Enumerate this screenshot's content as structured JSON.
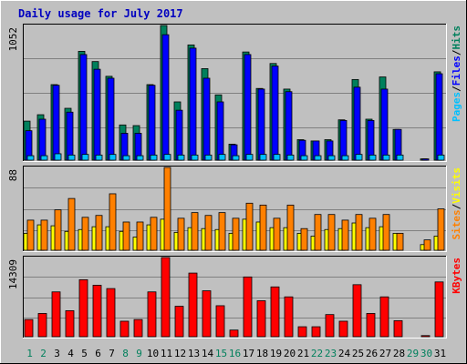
{
  "chart_data": {
    "type": "bar",
    "title": "Daily usage for July 2017",
    "days": [
      "1",
      "2",
      "3",
      "4",
      "5",
      "6",
      "7",
      "8",
      "9",
      "10",
      "11",
      "12",
      "13",
      "14",
      "15",
      "16",
      "17",
      "18",
      "19",
      "20",
      "21",
      "22",
      "23",
      "24",
      "25",
      "26",
      "27",
      "28",
      "29",
      "30",
      "31"
    ],
    "weekend_days": [
      "1",
      "2",
      "8",
      "9",
      "15",
      "16",
      "22",
      "23",
      "29",
      "30"
    ],
    "colors": {
      "hits": "#00805c",
      "files": "#0000ff",
      "pages": "#00c0ff",
      "visits": "#ffff00",
      "sites": "#ff8000",
      "kbytes": "#ff0000",
      "weekday_label": "#000000",
      "weekend_label": "#00805c"
    },
    "panels": [
      {
        "id": "hits-files-pages",
        "max_label": "1052",
        "ylim": [
          0,
          1052
        ],
        "legend": [
          {
            "text": "Pages",
            "color": "#00c0ff"
          },
          {
            "text": "/",
            "color": "#000000"
          },
          {
            "text": "Files",
            "color": "#0000ff"
          },
          {
            "text": "/",
            "color": "#000000"
          },
          {
            "text": "Hits",
            "color": "#00805c"
          }
        ],
        "series": [
          {
            "name": "Hits",
            "values": [
              305,
              355,
              590,
              405,
              850,
              770,
              655,
              275,
              270,
              590,
              1052,
              455,
              900,
              715,
              510,
              125,
              845,
              560,
              755,
              555,
              160,
              150,
              160,
              315,
              630,
              320,
              650,
              240,
              0,
              10,
              690
            ]
          },
          {
            "name": "Files",
            "values": [
              230,
              320,
              585,
              375,
              825,
              710,
              640,
              210,
              210,
              585,
              980,
              390,
              875,
              640,
              455,
              120,
              825,
              555,
              735,
              535,
              155,
              150,
              150,
              310,
              570,
              310,
              555,
              240,
              0,
              10,
              675
            ]
          },
          {
            "name": "Pages",
            "values": [
              35,
              35,
              50,
              40,
              45,
              40,
              45,
              35,
              35,
              40,
              45,
              40,
              40,
              40,
              45,
              35,
              45,
              45,
              45,
              40,
              35,
              35,
              35,
              35,
              45,
              40,
              40,
              40,
              0,
              0,
              40
            ]
          }
        ]
      },
      {
        "id": "visits-sites",
        "max_label": "88",
        "ylim": [
          0,
          88
        ],
        "legend": [
          {
            "text": "Sites",
            "color": "#ff8000"
          },
          {
            "text": "/",
            "color": "#000000"
          },
          {
            "text": "Visits",
            "color": "#ffff00"
          }
        ],
        "series": [
          {
            "name": "Visits",
            "values": [
              18,
              27,
              26,
              20,
              22,
              25,
              25,
              20,
              14,
              27,
              33,
              19,
              24,
              23,
              22,
              18,
              33,
              30,
              24,
              24,
              18,
              15,
              22,
              23,
              29,
              24,
              25,
              18,
              0,
              6,
              15
            ]
          },
          {
            "name": "Sites",
            "values": [
              32,
              32,
              43,
              55,
              35,
              37,
              60,
              30,
              30,
              35,
              88,
              34,
              40,
              37,
              40,
              34,
              50,
              48,
              34,
              48,
              23,
              38,
              38,
              32,
              38,
              34,
              38,
              18,
              0,
              11,
              44
            ]
          }
        ]
      },
      {
        "id": "kbytes",
        "max_label": "14309",
        "ylim": [
          0,
          14309
        ],
        "legend": [
          {
            "text": "KBytes",
            "color": "#ff0000"
          }
        ],
        "series": [
          {
            "name": "KBytes",
            "values": [
              3100,
              4200,
              8100,
              4700,
              10300,
              9300,
              8700,
              2800,
              3100,
              8100,
              14309,
              5500,
              11500,
              8300,
              5600,
              1200,
              10800,
              6500,
              9000,
              7200,
              1800,
              1800,
              4000,
              2800,
              9400,
              4200,
              7200,
              2900,
              0,
              200,
              9900
            ]
          }
        ]
      }
    ]
  }
}
